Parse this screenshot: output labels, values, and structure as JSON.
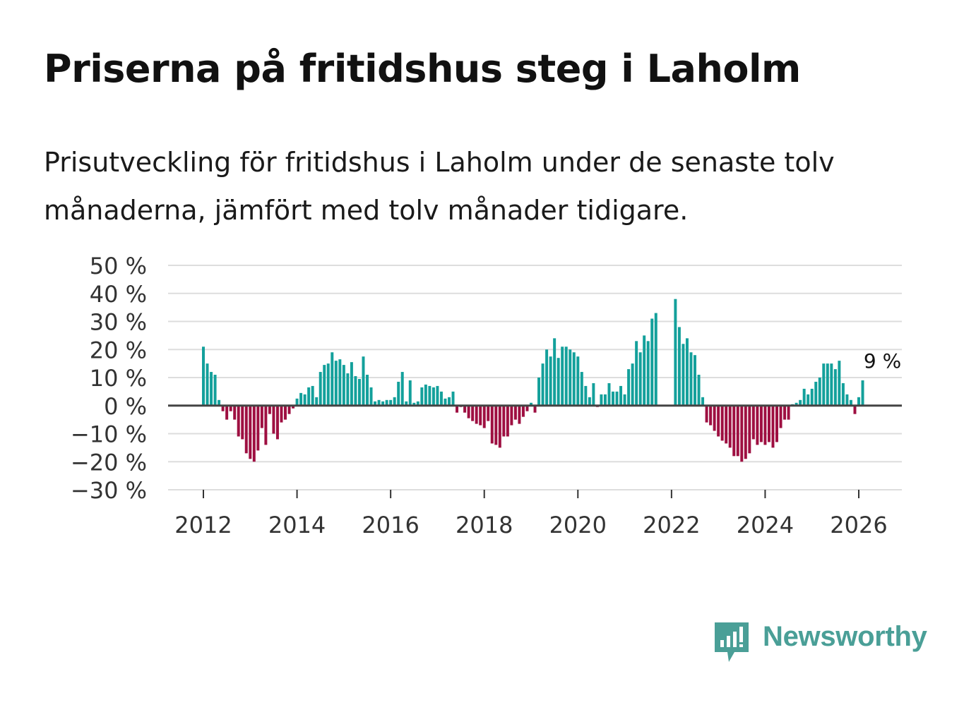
{
  "title": "Priserna på fritidshus steg i Laholm",
  "subtitle": "Prisutveckling för fritidshus i Laholm under de senaste tolv månaderna, jämfört med tolv månader tidigare.",
  "logo_text": "Newsworthy",
  "colors": {
    "positive": "#13a09b",
    "negative": "#9e0f41",
    "grid": "#dddddd",
    "zero": "#444444",
    "logo": "#4a9f97"
  },
  "chart_data": {
    "type": "bar",
    "unit": "%",
    "ylim": [
      -30,
      50
    ],
    "yticks": [
      50,
      40,
      30,
      20,
      10,
      0,
      -10,
      -20,
      -30
    ],
    "ytick_labels": [
      "50 %",
      "40 %",
      "30 %",
      "20 %",
      "10 %",
      "0 %",
      "−10 %",
      "−20 %",
      "−30 %"
    ],
    "xticks": [
      "2012",
      "2014",
      "2016",
      "2018",
      "2020",
      "2022",
      "2024",
      "2026"
    ],
    "x_start": "2012-01",
    "annotation": {
      "label": "9 %",
      "value": 9
    },
    "values": [
      21,
      15,
      12,
      11,
      2,
      -2,
      -5,
      -2,
      -5,
      -11,
      -12,
      -17,
      -19,
      -20,
      -16,
      -8,
      -14,
      -3,
      -10,
      -12,
      -6,
      -5,
      -3,
      -1,
      2.5,
      4.5,
      4,
      6.5,
      7,
      3,
      12,
      14.5,
      15,
      19,
      16,
      16.5,
      14.5,
      11.5,
      15.5,
      10.5,
      9.5,
      17.5,
      11,
      6.5,
      1.5,
      2,
      1.5,
      2,
      2,
      3,
      8.5,
      12,
      1.5,
      9,
      1,
      1.5,
      6.5,
      7.5,
      7,
      6.5,
      7,
      5,
      2.5,
      3,
      5,
      -2.5,
      -0.5,
      -2.5,
      -4.5,
      -5.5,
      -6.5,
      -7,
      -8,
      -5.5,
      -13.5,
      -14,
      -15,
      -11,
      -11,
      -7,
      -5,
      -6.5,
      -4,
      -2,
      1,
      -2.5,
      10,
      15,
      20,
      17.5,
      24,
      17,
      21,
      21,
      20,
      19,
      17.5,
      12,
      7,
      3,
      8,
      -0.5,
      4,
      4,
      8,
      5,
      5,
      7,
      4,
      13,
      15,
      23,
      19,
      25,
      23,
      31,
      33,
      null,
      null,
      null,
      null,
      38,
      28,
      22,
      24,
      19,
      18,
      11,
      3,
      -6,
      -7,
      -9,
      -11,
      -12.5,
      -13.5,
      -15,
      -18,
      -18,
      -20,
      -19,
      -17,
      -12,
      -14,
      -13,
      -14,
      -13,
      -15,
      -13,
      -8,
      -5,
      -5,
      0.5,
      1,
      2,
      6,
      4,
      6,
      8.5,
      10,
      15,
      15,
      15,
      13,
      16,
      8,
      4,
      2,
      -3,
      3,
      9
    ]
  }
}
